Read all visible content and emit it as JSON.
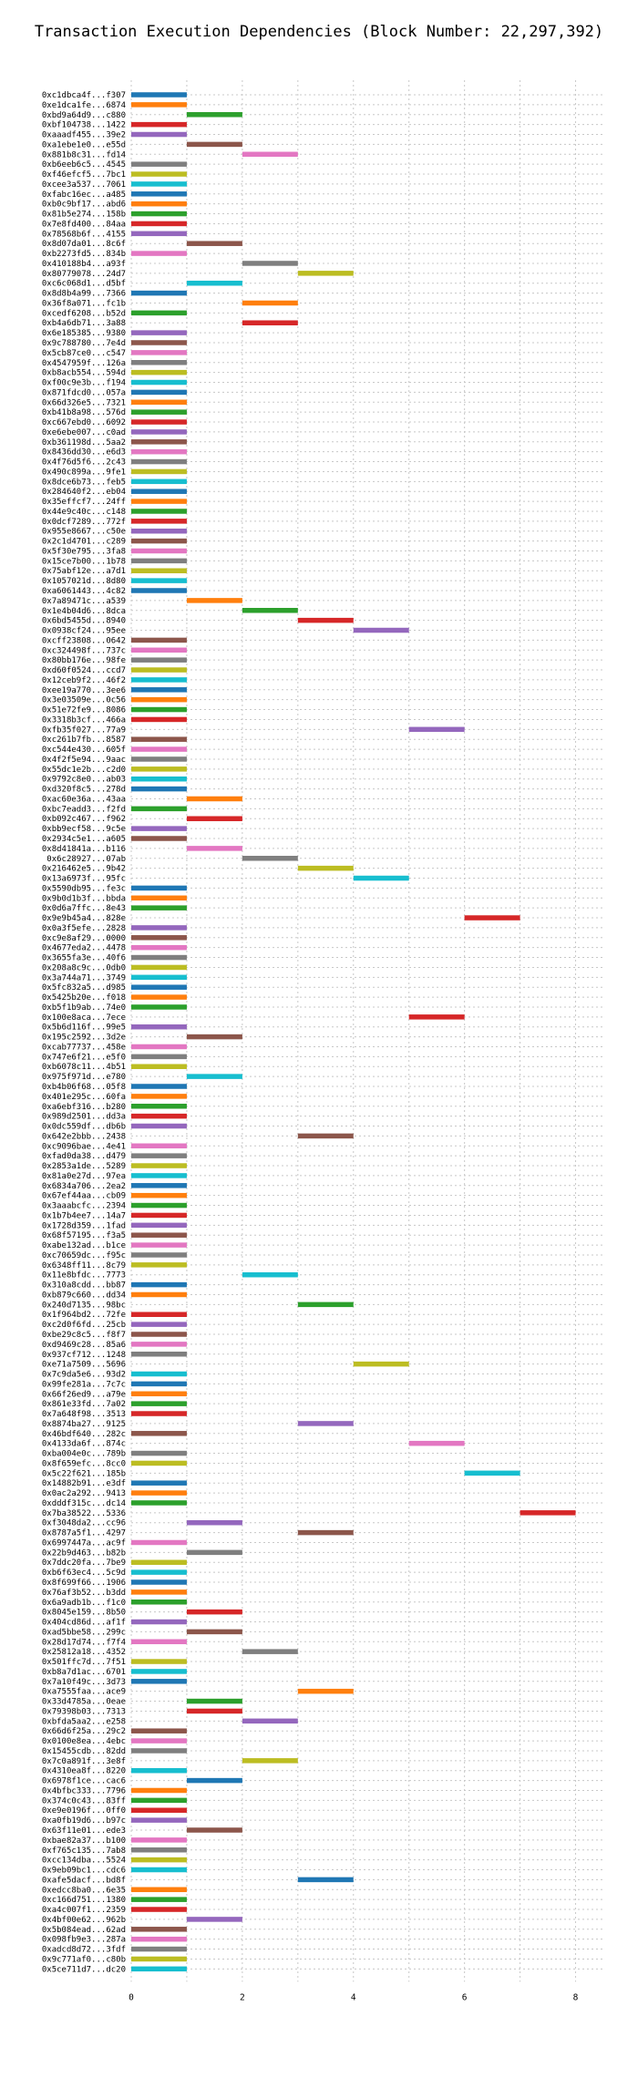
{
  "chart_data": {
    "type": "gantt-bar",
    "title": "Transaction Execution Dependencies (Block Number: 22,297,392)",
    "xlim": [
      0,
      8.5
    ],
    "x_ticks": [
      0,
      2,
      4,
      6,
      8
    ],
    "grid": true,
    "colors": [
      "#1f77b4",
      "#ff7f0e",
      "#2ca02c",
      "#d62728",
      "#9467bd",
      "#8c564b",
      "#e377c2",
      "#7f7f7f",
      "#bcbd22",
      "#17becf"
    ],
    "transactions": [
      {
        "label": "0xc1dbca4f...f307",
        "start": 0,
        "end": 1
      },
      {
        "label": "0xe1dca1fe...6874",
        "start": 0,
        "end": 1
      },
      {
        "label": "0xbd9a64d9...c880",
        "start": 1,
        "end": 2
      },
      {
        "label": "0xbf104738...1422",
        "start": 0,
        "end": 1
      },
      {
        "label": "0xaaadf455...39e2",
        "start": 0,
        "end": 1
      },
      {
        "label": "0xa1ebe1e0...e55d",
        "start": 1,
        "end": 2
      },
      {
        "label": "0x881b8c31...fd14",
        "start": 2,
        "end": 3
      },
      {
        "label": "0xb6eeb6c5...4545",
        "start": 0,
        "end": 1
      },
      {
        "label": "0xf46efcf5...7bc1",
        "start": 0,
        "end": 1
      },
      {
        "label": "0xcee3a537...7061",
        "start": 0,
        "end": 1
      },
      {
        "label": "0xfabc16ec...a485",
        "start": 0,
        "end": 1
      },
      {
        "label": "0xb0c9bf17...abd6",
        "start": 0,
        "end": 1
      },
      {
        "label": "0x81b5e274...158b",
        "start": 0,
        "end": 1
      },
      {
        "label": "0x7e8fd400...84aa",
        "start": 0,
        "end": 1
      },
      {
        "label": "0x78568b6f...4155",
        "start": 0,
        "end": 1
      },
      {
        "label": "0x8d07da01...8c6f",
        "start": 1,
        "end": 2
      },
      {
        "label": "0xb2273fd5...834b",
        "start": 0,
        "end": 1
      },
      {
        "label": "0x410188b4...a93f",
        "start": 2,
        "end": 3
      },
      {
        "label": "0x80779078...24d7",
        "start": 3,
        "end": 4
      },
      {
        "label": "0xc6c068d1...d5bf",
        "start": 1,
        "end": 2
      },
      {
        "label": "0x8d8b4a99...7366",
        "start": 0,
        "end": 1
      },
      {
        "label": "0x36f8a071...fc1b",
        "start": 2,
        "end": 3
      },
      {
        "label": "0xcedf6208...b52d",
        "start": 0,
        "end": 1
      },
      {
        "label": "0xb4a6db71...3a88",
        "start": 2,
        "end": 3
      },
      {
        "label": "0x6e185385...9380",
        "start": 0,
        "end": 1
      },
      {
        "label": "0x9c788780...7e4d",
        "start": 0,
        "end": 1
      },
      {
        "label": "0x5cb87ce0...c547",
        "start": 0,
        "end": 1
      },
      {
        "label": "0x4547959f...126a",
        "start": 0,
        "end": 1
      },
      {
        "label": "0xb8acb554...594d",
        "start": 0,
        "end": 1
      },
      {
        "label": "0xf00c9e3b...f194",
        "start": 0,
        "end": 1
      },
      {
        "label": "0x871fdcd0...057a",
        "start": 0,
        "end": 1
      },
      {
        "label": "0x66d326e5...7321",
        "start": 0,
        "end": 1
      },
      {
        "label": "0xb41b8a98...576d",
        "start": 0,
        "end": 1
      },
      {
        "label": "0xc667ebd0...6092",
        "start": 0,
        "end": 1
      },
      {
        "label": "0xe6ebe007...c0ad",
        "start": 0,
        "end": 1
      },
      {
        "label": "0xb361198d...5aa2",
        "start": 0,
        "end": 1
      },
      {
        "label": "0x8436dd30...e6d3",
        "start": 0,
        "end": 1
      },
      {
        "label": "0x4f76d5f6...2c43",
        "start": 0,
        "end": 1
      },
      {
        "label": "0x490c899a...9fe1",
        "start": 0,
        "end": 1
      },
      {
        "label": "0x8dce6b73...feb5",
        "start": 0,
        "end": 1
      },
      {
        "label": "0x284640f2...eb04",
        "start": 0,
        "end": 1
      },
      {
        "label": "0x35effcf7...24ff",
        "start": 0,
        "end": 1
      },
      {
        "label": "0x44e9c40c...c148",
        "start": 0,
        "end": 1
      },
      {
        "label": "0x0dcf7289...772f",
        "start": 0,
        "end": 1
      },
      {
        "label": "0x955e8667...c50e",
        "start": 0,
        "end": 1
      },
      {
        "label": "0x2c1d4701...c289",
        "start": 0,
        "end": 1
      },
      {
        "label": "0x5f30e795...3fa8",
        "start": 0,
        "end": 1
      },
      {
        "label": "0x15ce7b00...1b78",
        "start": 0,
        "end": 1
      },
      {
        "label": "0x75abf12e...a7d1",
        "start": 0,
        "end": 1
      },
      {
        "label": "0x1057021d...8d80",
        "start": 0,
        "end": 1
      },
      {
        "label": "0xa6061443...4c82",
        "start": 0,
        "end": 1
      },
      {
        "label": "0x7a89471c...a539",
        "start": 1,
        "end": 2
      },
      {
        "label": "0x1e4b04d6...8dca",
        "start": 2,
        "end": 3
      },
      {
        "label": "0x6bd5455d...8940",
        "start": 3,
        "end": 4
      },
      {
        "label": "0x0938cf24...95ee",
        "start": 4,
        "end": 5
      },
      {
        "label": "0xcff23808...0642",
        "start": 0,
        "end": 1
      },
      {
        "label": "0xc324498f...737c",
        "start": 0,
        "end": 1
      },
      {
        "label": "0x80bb176e...98fe",
        "start": 0,
        "end": 1
      },
      {
        "label": "0xd60f0524...ccd7",
        "start": 0,
        "end": 1
      },
      {
        "label": "0x12ceb9f2...46f2",
        "start": 0,
        "end": 1
      },
      {
        "label": "0xee19a770...3ee6",
        "start": 0,
        "end": 1
      },
      {
        "label": "0x3e03509e...0c56",
        "start": 0,
        "end": 1
      },
      {
        "label": "0x51e72fe9...8086",
        "start": 0,
        "end": 1
      },
      {
        "label": "0x3318b3cf...466a",
        "start": 0,
        "end": 1
      },
      {
        "label": "0xfb35f027...77a9",
        "start": 5,
        "end": 6
      },
      {
        "label": "0xc261b7fb...8587",
        "start": 0,
        "end": 1
      },
      {
        "label": "0xc544e430...605f",
        "start": 0,
        "end": 1
      },
      {
        "label": "0x4f2f5e94...9aac",
        "start": 0,
        "end": 1
      },
      {
        "label": "0x55dc1e2b...c2d0",
        "start": 0,
        "end": 1
      },
      {
        "label": "0x9792c8e0...ab03",
        "start": 0,
        "end": 1
      },
      {
        "label": "0xd320f8c5...278d",
        "start": 0,
        "end": 1
      },
      {
        "label": "0xac60e36a...43aa",
        "start": 1,
        "end": 2
      },
      {
        "label": "0xbc7eadd3...f2fd",
        "start": 0,
        "end": 1
      },
      {
        "label": "0xb092c467...f962",
        "start": 1,
        "end": 2
      },
      {
        "label": "0xbb9ecf58...9c5e",
        "start": 0,
        "end": 1
      },
      {
        "label": "0x2934c5e1...a605",
        "start": 0,
        "end": 1
      },
      {
        "label": "0x8d41841a...b116",
        "start": 1,
        "end": 2
      },
      {
        "label": "0x6c28927...07ab",
        "start": 2,
        "end": 3
      },
      {
        "label": "0x216462e5...9b42",
        "start": 3,
        "end": 4
      },
      {
        "label": "0x13a6973f...95fc",
        "start": 4,
        "end": 5
      },
      {
        "label": "0x5590db95...fe3c",
        "start": 0,
        "end": 1
      },
      {
        "label": "0x9b0d1b3f...bbda",
        "start": 0,
        "end": 1
      },
      {
        "label": "0x0d6a7ffc...8e43",
        "start": 0,
        "end": 1
      },
      {
        "label": "0x9e9b45a4...828e",
        "start": 6,
        "end": 7
      },
      {
        "label": "0x0a3f5efe...2828",
        "start": 0,
        "end": 1
      },
      {
        "label": "0xc9e8af29...0000",
        "start": 0,
        "end": 1
      },
      {
        "label": "0x4677eda2...4478",
        "start": 0,
        "end": 1
      },
      {
        "label": "0x3655fa3e...40f6",
        "start": 0,
        "end": 1
      },
      {
        "label": "0x208a8c9c...0db0",
        "start": 0,
        "end": 1
      },
      {
        "label": "0x3a744a71...3749",
        "start": 0,
        "end": 1
      },
      {
        "label": "0x5fc832a5...d985",
        "start": 0,
        "end": 1
      },
      {
        "label": "0x5425b20e...f018",
        "start": 0,
        "end": 1
      },
      {
        "label": "0xb5f1b9ab...74e0",
        "start": 0,
        "end": 1
      },
      {
        "label": "0x100e8aca...7ece",
        "start": 5,
        "end": 6
      },
      {
        "label": "0x5b6d116f...99e5",
        "start": 0,
        "end": 1
      },
      {
        "label": "0x195c2592...3d2e",
        "start": 1,
        "end": 2
      },
      {
        "label": "0xcab77737...458e",
        "start": 0,
        "end": 1
      },
      {
        "label": "0x747e6f21...e5f0",
        "start": 0,
        "end": 1
      },
      {
        "label": "0xb6078c11...4b51",
        "start": 0,
        "end": 1
      },
      {
        "label": "0x975f971d...e780",
        "start": 1,
        "end": 2
      },
      {
        "label": "0xb4b06f68...05f8",
        "start": 0,
        "end": 1
      },
      {
        "label": "0x401e295c...60fa",
        "start": 0,
        "end": 1
      },
      {
        "label": "0xa6ebf316...b280",
        "start": 0,
        "end": 1
      },
      {
        "label": "0x989d2501...dd3a",
        "start": 0,
        "end": 1
      },
      {
        "label": "0x0dc559df...db6b",
        "start": 0,
        "end": 1
      },
      {
        "label": "0x642e2bbb...2438",
        "start": 3,
        "end": 4
      },
      {
        "label": "0xc9096bae...4e41",
        "start": 0,
        "end": 1
      },
      {
        "label": "0xfad0da38...d479",
        "start": 0,
        "end": 1
      },
      {
        "label": "0x2853a1de...5289",
        "start": 0,
        "end": 1
      },
      {
        "label": "0x81a0e27d...97ea",
        "start": 0,
        "end": 1
      },
      {
        "label": "0x6834a706...2ea2",
        "start": 0,
        "end": 1
      },
      {
        "label": "0x67ef44aa...cb09",
        "start": 0,
        "end": 1
      },
      {
        "label": "0x3aaabcfc...2394",
        "start": 0,
        "end": 1
      },
      {
        "label": "0x1b7b4ee7...14a7",
        "start": 0,
        "end": 1
      },
      {
        "label": "0x1728d359...1fad",
        "start": 0,
        "end": 1
      },
      {
        "label": "0x68f57195...f3a5",
        "start": 0,
        "end": 1
      },
      {
        "label": "0xabe132ad...b1ce",
        "start": 0,
        "end": 1
      },
      {
        "label": "0xc70659dc...f95c",
        "start": 0,
        "end": 1
      },
      {
        "label": "0x6348ff11...8c79",
        "start": 0,
        "end": 1
      },
      {
        "label": "0x11e8bfdc...7773",
        "start": 2,
        "end": 3
      },
      {
        "label": "0x310a8cdd...bb87",
        "start": 0,
        "end": 1
      },
      {
        "label": "0xb879c660...dd34",
        "start": 0,
        "end": 1
      },
      {
        "label": "0x240d7135...98bc",
        "start": 3,
        "end": 4
      },
      {
        "label": "0x1f964bd2...72fe",
        "start": 0,
        "end": 1
      },
      {
        "label": "0xc2d0f6fd...25cb",
        "start": 0,
        "end": 1
      },
      {
        "label": "0xbe29c8c5...f8f7",
        "start": 0,
        "end": 1
      },
      {
        "label": "0xd9469c28...85a6",
        "start": 0,
        "end": 1
      },
      {
        "label": "0x937cf712...1248",
        "start": 0,
        "end": 1
      },
      {
        "label": "0xe71a7509...5696",
        "start": 4,
        "end": 5
      },
      {
        "label": "0x7c9da5e6...93d2",
        "start": 0,
        "end": 1
      },
      {
        "label": "0x99fe281a...7c7c",
        "start": 0,
        "end": 1
      },
      {
        "label": "0x66f26ed9...a79e",
        "start": 0,
        "end": 1
      },
      {
        "label": "0x861e33fd...7a02",
        "start": 0,
        "end": 1
      },
      {
        "label": "0x7a648f98...3513",
        "start": 0,
        "end": 1
      },
      {
        "label": "0x8874ba27...9125",
        "start": 3,
        "end": 4
      },
      {
        "label": "0x46bdf640...282c",
        "start": 0,
        "end": 1
      },
      {
        "label": "0x4133da6f...874c",
        "start": 5,
        "end": 6
      },
      {
        "label": "0xba004e0c...789b",
        "start": 0,
        "end": 1
      },
      {
        "label": "0x8f659efc...8cc0",
        "start": 0,
        "end": 1
      },
      {
        "label": "0x5c22f621...185b",
        "start": 6,
        "end": 7
      },
      {
        "label": "0x14882b91...e3df",
        "start": 0,
        "end": 1
      },
      {
        "label": "0x0ac2a292...9413",
        "start": 0,
        "end": 1
      },
      {
        "label": "0xdddf315c...dc14",
        "start": 0,
        "end": 1
      },
      {
        "label": "0x7ba38522...5336",
        "start": 7,
        "end": 8
      },
      {
        "label": "0xf3048da2...cc96",
        "start": 1,
        "end": 2
      },
      {
        "label": "0x8787a5f1...4297",
        "start": 3,
        "end": 4
      },
      {
        "label": "0x6997447a...ac9f",
        "start": 0,
        "end": 1
      },
      {
        "label": "0x22b9d463...b82b",
        "start": 1,
        "end": 2
      },
      {
        "label": "0x7ddc20fa...7be9",
        "start": 0,
        "end": 1
      },
      {
        "label": "0xb6f63ec4...5c9d",
        "start": 0,
        "end": 1
      },
      {
        "label": "0x8f699f66...1906",
        "start": 0,
        "end": 1
      },
      {
        "label": "0x76af3b52...b3dd",
        "start": 0,
        "end": 1
      },
      {
        "label": "0x6a9adb1b...f1c0",
        "start": 0,
        "end": 1
      },
      {
        "label": "0x8045e159...8b50",
        "start": 1,
        "end": 2
      },
      {
        "label": "0x404cd86d...af1f",
        "start": 0,
        "end": 1
      },
      {
        "label": "0xad5bbe58...299c",
        "start": 1,
        "end": 2
      },
      {
        "label": "0x28d17d74...f7f4",
        "start": 0,
        "end": 1
      },
      {
        "label": "0x25812a18...4352",
        "start": 2,
        "end": 3
      },
      {
        "label": "0x501ffc7d...7f51",
        "start": 0,
        "end": 1
      },
      {
        "label": "0xb8a7d1ac...6701",
        "start": 0,
        "end": 1
      },
      {
        "label": "0x7a10f49c...3d73",
        "start": 0,
        "end": 1
      },
      {
        "label": "0xa7555faa...ace9",
        "start": 3,
        "end": 4
      },
      {
        "label": "0x33d4785a...0eae",
        "start": 1,
        "end": 2
      },
      {
        "label": "0x79398b03...7313",
        "start": 1,
        "end": 2
      },
      {
        "label": "0xbfda5aa2...e258",
        "start": 2,
        "end": 3
      },
      {
        "label": "0x66d6f25a...29c2",
        "start": 0,
        "end": 1
      },
      {
        "label": "0x0100e8ea...4ebc",
        "start": 0,
        "end": 1
      },
      {
        "label": "0x15455cdb...82dd",
        "start": 0,
        "end": 1
      },
      {
        "label": "0x7c0a891f...3e8f",
        "start": 2,
        "end": 3
      },
      {
        "label": "0x4310ea8f...8220",
        "start": 0,
        "end": 1
      },
      {
        "label": "0x6978f1ce...cac6",
        "start": 1,
        "end": 2
      },
      {
        "label": "0x4bfbc333...7796",
        "start": 0,
        "end": 1
      },
      {
        "label": "0x374c0c43...83ff",
        "start": 0,
        "end": 1
      },
      {
        "label": "0xe9e0196f...0ff0",
        "start": 0,
        "end": 1
      },
      {
        "label": "0xa0fb19d6...b97c",
        "start": 0,
        "end": 1
      },
      {
        "label": "0x63f11e01...ede3",
        "start": 1,
        "end": 2
      },
      {
        "label": "0xbae82a37...b100",
        "start": 0,
        "end": 1
      },
      {
        "label": "0xf765c135...7ab8",
        "start": 0,
        "end": 1
      },
      {
        "label": "0xcc134dba...5524",
        "start": 0,
        "end": 1
      },
      {
        "label": "0x9eb09bc1...cdc6",
        "start": 0,
        "end": 1
      },
      {
        "label": "0xafe5dacf...bd8f",
        "start": 3,
        "end": 4
      },
      {
        "label": "0xedcc8ba0...6e35",
        "start": 0,
        "end": 1
      },
      {
        "label": "0xc166d751...1380",
        "start": 0,
        "end": 1
      },
      {
        "label": "0xa4c007f1...2359",
        "start": 0,
        "end": 1
      },
      {
        "label": "0x4bf00e62...962b",
        "start": 1,
        "end": 2
      },
      {
        "label": "0x5b084ead...62ad",
        "start": 0,
        "end": 1
      },
      {
        "label": "0x098fb9e3...287a",
        "start": 0,
        "end": 1
      },
      {
        "label": "0xadcd8d72...3fdf",
        "start": 0,
        "end": 1
      },
      {
        "label": "0x9c771af0...c80b",
        "start": 0,
        "end": 1
      },
      {
        "label": "0x5ce711d7...dc20",
        "start": 0,
        "end": 1
      }
    ]
  }
}
